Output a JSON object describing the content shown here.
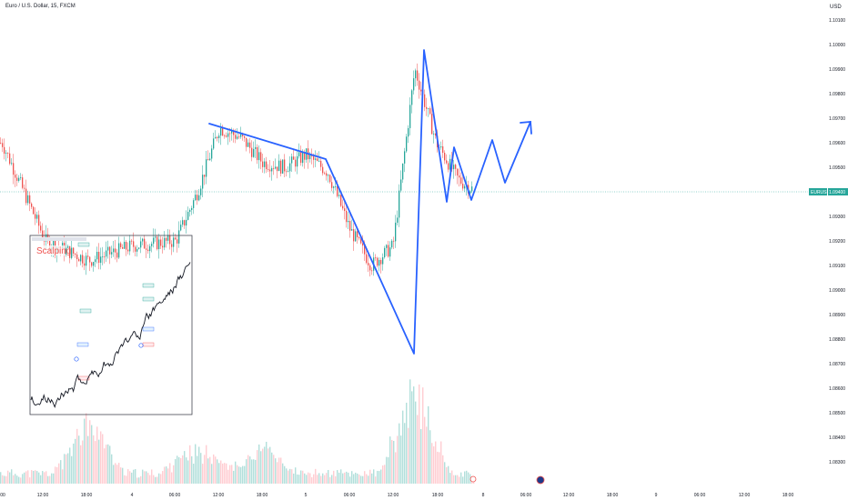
{
  "header": {
    "title": "Euro / U.S. Dollar, 15, FXCM",
    "currency": "USD"
  },
  "price_axis": {
    "labels": [
      "1.10100",
      "1.10000",
      "1.09900",
      "1.09800",
      "1.09700",
      "1.09600",
      "1.09500",
      "1.09300",
      "1.09200",
      "1.09100",
      "1.09000",
      "1.08900",
      "1.08800",
      "1.08700",
      "1.08600",
      "1.08500",
      "1.08400",
      "1.08300"
    ],
    "current_symbol": "EURUSD",
    "current_price": "1.09400"
  },
  "time_axis": {
    "labels": [
      "00",
      "12:00",
      "18:00",
      "4",
      "06:00",
      "12:00",
      "18:00",
      "5",
      "06:00",
      "12:00",
      "18:00",
      "8",
      "06:00",
      "12:00",
      "18:00",
      "9",
      "06:00",
      "12:00",
      "18:00"
    ]
  },
  "inset": {
    "annotation": "Scalping"
  },
  "colors": {
    "bull": "#26a69a",
    "bear": "#ef5350",
    "projection": "#2962ff",
    "price_line": "#26a69a"
  },
  "chart_data": {
    "type": "line",
    "title": "Euro / U.S. Dollar, 15, FXCM",
    "y_unit": "USD",
    "ylim": [
      1.0825,
      1.1015
    ],
    "current_price": 1.094,
    "price_path": {
      "name": "",
      "x": [
        "3 00:00",
        "3 06:00",
        "3 12:00",
        "3 18:00",
        "4 00:00",
        "4 06:00",
        "4 09:00",
        "4 12:00",
        "4 15:00",
        "4 18:00",
        "4 21:00",
        "5 00:00",
        "5 03:00",
        "5 06:00",
        "5 09:00",
        "5 12:00",
        "5 15:00",
        "5 18:00",
        "5 21:00",
        "8 00:00"
      ],
      "y": [
        1.0958,
        1.096,
        1.092,
        1.0912,
        1.0918,
        1.092,
        1.094,
        1.0966,
        1.0962,
        1.0952,
        1.095,
        1.0955,
        1.0948,
        1.0925,
        1.091,
        1.0918,
        1.099,
        1.096,
        1.0945,
        1.0938
      ]
    },
    "projection": {
      "name": "",
      "points": [
        {
          "x": "4 09:30",
          "y": 1.0968
        },
        {
          "x": "5 02:00",
          "y": 1.0952
        },
        {
          "x": "5 12:30",
          "y": 1.0876
        },
        {
          "x": "5 15:30",
          "y": 1.0998
        },
        {
          "x": "5 18:00",
          "y": 1.0936
        },
        {
          "x": "5 19:00",
          "y": 1.0958
        },
        {
          "x": "5 21:00",
          "y": 1.0938
        },
        {
          "x": "8 00:30",
          "y": 1.0961
        },
        {
          "x": "8 01:30",
          "y": 1.0945
        },
        {
          "x": "8 03:00",
          "y": 1.0968
        },
        {
          "x": "8 03:10",
          "y": 1.0963
        }
      ]
    },
    "volume_peaks": [
      {
        "x": "3 18:00",
        "level": 0.6
      },
      {
        "x": "4 09:00",
        "level": 0.35
      },
      {
        "x": "4 18:00",
        "level": 0.3
      },
      {
        "x": "5 15:00",
        "level": 1.0
      }
    ],
    "grid": false,
    "legend": "none"
  }
}
